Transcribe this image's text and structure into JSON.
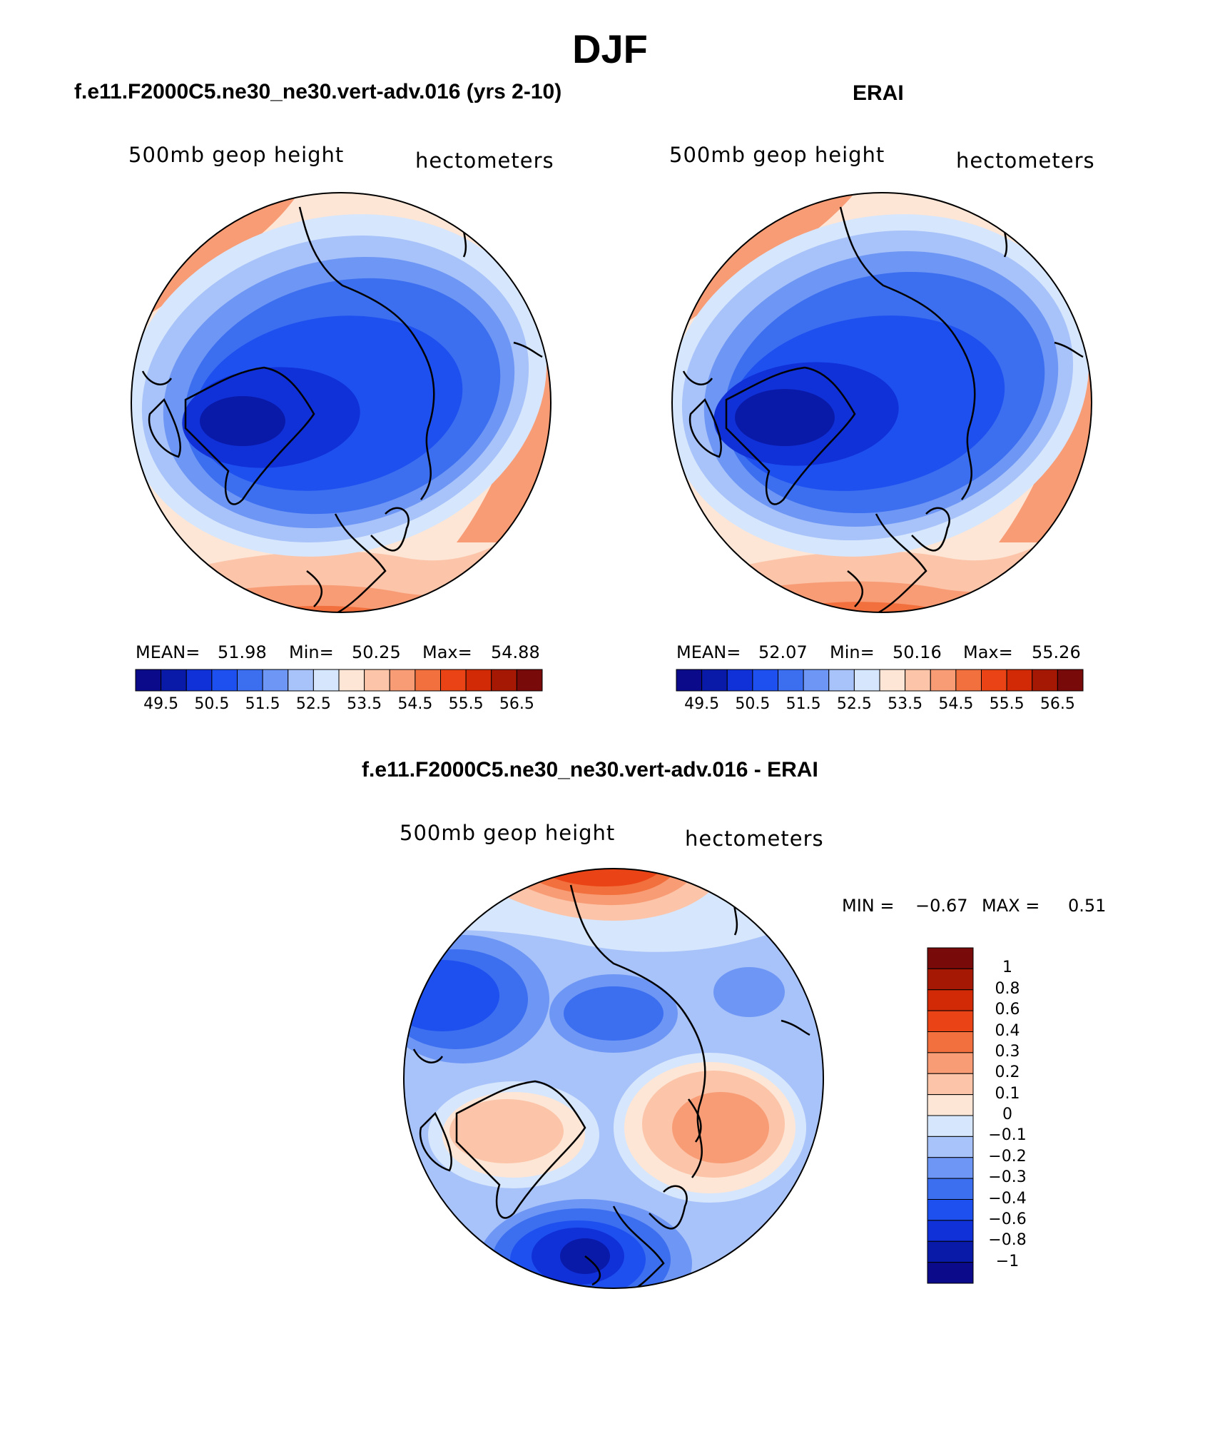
{
  "title": "DJF",
  "panels": [
    {
      "title": "f.e11.F2000C5.ne30_ne30.vert-adv.016 (yrs 2-10)",
      "left_label": "500mb geop height",
      "right_label": "hectometers",
      "stats": {
        "mean_label": "MEAN=",
        "mean": "51.98",
        "min_label": "Min=",
        "min": "50.25",
        "max_label": "Max=",
        "max": "54.88"
      }
    },
    {
      "title": "ERAI",
      "left_label": "500mb geop height",
      "right_label": "hectometers",
      "stats": {
        "mean_label": "MEAN=",
        "mean": "52.07",
        "min_label": "Min=",
        "min": "50.16",
        "max_label": "Max=",
        "max": "55.26"
      }
    }
  ],
  "colorbar": {
    "ticks": [
      "49.5",
      "50.5",
      "51.5",
      "52.5",
      "53.5",
      "54.5",
      "55.5",
      "56.5"
    ],
    "colors": [
      "#0a0a8a",
      "#0a1aa8",
      "#1030d8",
      "#1e50f0",
      "#3c6ef0",
      "#6e96f4",
      "#a8c2fa",
      "#d6e6fc",
      "#fde6d6",
      "#fcc4a8",
      "#f89c76",
      "#f2703e",
      "#ea4416",
      "#d22a06",
      "#a51804",
      "#780a0a"
    ]
  },
  "diff": {
    "title": "f.e11.F2000C5.ne30_ne30.vert-adv.016 - ERAI",
    "left_label": "500mb geop height",
    "right_label": "hectometers",
    "min_label": "MIN =",
    "min": "−0.67",
    "max_label": "MAX =",
    "max": "0.51",
    "ticks": [
      "1",
      "0.8",
      "0.6",
      "0.4",
      "0.3",
      "0.2",
      "0.1",
      "0",
      "−0.1",
      "−0.2",
      "−0.3",
      "−0.4",
      "−0.6",
      "−0.8",
      "−1"
    ],
    "colors": [
      "#780a0a",
      "#a51804",
      "#d22a06",
      "#ea4416",
      "#f2703e",
      "#f89c76",
      "#fcc4a8",
      "#fde6d6",
      "#d6e6fc",
      "#a8c2fa",
      "#6e96f4",
      "#3c6ef0",
      "#1e50f0",
      "#1030d8",
      "#0a1aa8",
      "#0a0a8a"
    ]
  }
}
